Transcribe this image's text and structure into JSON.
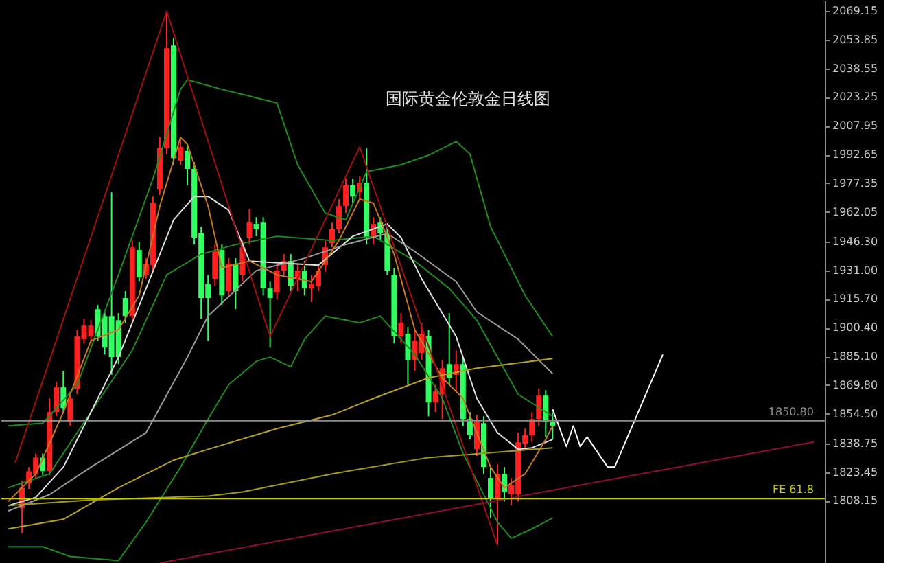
{
  "chart_data": {
    "type": "candlestick",
    "title": "国际黄金伦敦金日线图",
    "categories": [
      null,
      null,
      null,
      null,
      null,
      null,
      null,
      null,
      null,
      null,
      null,
      null,
      null,
      null,
      null,
      null,
      null,
      null,
      null,
      null,
      null,
      null,
      null,
      null,
      null,
      null,
      null,
      null,
      null,
      null,
      null,
      null,
      null,
      null,
      null,
      null,
      null,
      null,
      null,
      null,
      null,
      null,
      null,
      null,
      null,
      null,
      null,
      null,
      null,
      null,
      null,
      null,
      null,
      null,
      null,
      null,
      null,
      null,
      null,
      null,
      null,
      null,
      null,
      null,
      null,
      null,
      null,
      null,
      null,
      null,
      null,
      null,
      null,
      null,
      null,
      null,
      null,
      null,
      null,
      null,
      null,
      null,
      null,
      null,
      null,
      null,
      null,
      null,
      null,
      null,
      null,
      null,
      null,
      null,
      null,
      null,
      null,
      null,
      null,
      null,
      null,
      null,
      null,
      null,
      null,
      null,
      null,
      null,
      null,
      null,
      null,
      null,
      null,
      null,
      null,
      null,
      null,
      null
    ],
    "ohlc": [
      null,
      null,
      [
        1804.2,
        1818.8,
        1791.0,
        1815.1
      ],
      [
        1817.3,
        1826.1,
        1814.4,
        1823.9
      ],
      [
        1822.5,
        1833.4,
        1820.3,
        1831.2
      ],
      [
        1831.2,
        1833.4,
        1821.7,
        1823.9
      ],
      [
        1823.9,
        1862.7,
        1821.7,
        1855.4
      ],
      [
        1855.4,
        1871.5,
        1853.2,
        1868.6
      ],
      [
        1868.6,
        1877.4,
        1855.4,
        1857.6
      ],
      [
        1850.3,
        1866.4,
        1848.1,
        1862.7
      ],
      [
        1867.8,
        1899.3,
        1864.9,
        1895.7
      ],
      [
        1894.2,
        1905.2,
        1892.0,
        1901.5
      ],
      [
        1895.7,
        1904.4,
        1892.0,
        1901.5
      ],
      [
        1910.3,
        1912.5,
        1893.5,
        1895.7
      ],
      [
        1906.6,
        1908.8,
        1886.1,
        1889.8
      ],
      [
        1906.6,
        1972.5,
        1875.2,
        1884.7
      ],
      [
        1904.4,
        1908.1,
        1881.0,
        1884.7
      ],
      [
        1916.2,
        1919.8,
        1903.0,
        1906.6
      ],
      [
        1906.6,
        1946.9,
        1904.4,
        1943.2
      ],
      [
        1941.8,
        1946.2,
        1924.9,
        1927.1
      ],
      [
        1928.6,
        1937.4,
        1926.4,
        1934.5
      ],
      [
        1933.7,
        1970.3,
        1930.8,
        1966.7
      ],
      [
        1974.0,
        2001.8,
        1971.1,
        1996.0
      ],
      [
        1996.0,
        2069.1,
        1993.0,
        2049.4
      ],
      [
        2050.8,
        2054.5,
        1987.2,
        1990.8
      ],
      [
        1989.4,
        2001.8,
        1987.2,
        1996.7
      ],
      [
        1994.5,
        1998.1,
        1976.2,
        1985.0
      ],
      [
        1985.0,
        1988.6,
        1944.7,
        1948.4
      ],
      [
        1950.6,
        1954.2,
        1905.2,
        1916.2
      ],
      [
        1923.5,
        1928.6,
        1893.5,
        1916.2
      ],
      [
        1926.4,
        1944.7,
        1922.7,
        1941.0
      ],
      [
        1941.8,
        1944.7,
        1912.5,
        1917.6
      ],
      [
        1919.8,
        1937.4,
        1917.6,
        1934.5
      ],
      [
        1934.5,
        1937.4,
        1910.3,
        1919.8
      ],
      [
        1928.6,
        1946.9,
        1924.9,
        1943.2
      ],
      [
        1948.4,
        1963.7,
        1944.7,
        1956.4
      ],
      [
        1955.7,
        1959.3,
        1949.1,
        1952.8
      ],
      [
        1956.4,
        1959.3,
        1917.6,
        1921.3
      ],
      [
        1921.3,
        1924.9,
        1889.8,
        1916.2
      ],
      [
        1919.1,
        1934.5,
        1915.4,
        1930.8
      ],
      [
        1930.8,
        1939.6,
        1928.6,
        1935.9
      ],
      [
        1935.9,
        1939.6,
        1919.8,
        1922.7
      ],
      [
        1926.4,
        1934.5,
        1919.8,
        1930.8
      ],
      [
        1930.8,
        1935.9,
        1917.6,
        1921.3
      ],
      [
        1921.3,
        1928.6,
        1914.0,
        1923.5
      ],
      [
        1922.7,
        1933.7,
        1919.8,
        1930.8
      ],
      [
        1933.7,
        1946.9,
        1930.1,
        1943.2
      ],
      [
        1945.4,
        1956.4,
        1943.2,
        1952.8
      ],
      [
        1952.8,
        1968.9,
        1950.6,
        1965.2
      ],
      [
        1965.2,
        1979.8,
        1961.5,
        1976.2
      ],
      [
        1976.2,
        1979.8,
        1966.7,
        1970.3
      ],
      [
        1972.5,
        1981.3,
        1968.9,
        1977.6
      ],
      [
        1977.6,
        1995.9,
        1944.7,
        1948.4
      ],
      [
        1948.4,
        1959.3,
        1944.7,
        1955.7
      ],
      [
        1956.4,
        1959.3,
        1946.9,
        1950.6
      ],
      [
        1950.6,
        1954.2,
        1928.6,
        1930.8
      ],
      [
        1928.6,
        1932.3,
        1892.0,
        1895.7
      ],
      [
        1895.7,
        1908.1,
        1892.0,
        1903.0
      ],
      [
        1897.1,
        1900.8,
        1870.0,
        1883.2
      ],
      [
        1883.2,
        1899.3,
        1877.4,
        1893.5
      ],
      [
        1886.9,
        1903.0,
        1883.2,
        1897.1
      ],
      [
        1895.7,
        1899.3,
        1853.2,
        1860.5
      ],
      [
        1860.5,
        1870.0,
        1855.4,
        1866.4
      ],
      [
        1864.9,
        1883.2,
        1851.7,
        1878.8
      ],
      [
        1881.0,
        1908.1,
        1870.0,
        1873.7
      ],
      [
        1875.2,
        1888.3,
        1866.4,
        1881.0
      ],
      [
        1881.0,
        1884.7,
        1848.1,
        1851.7
      ],
      [
        1851.7,
        1855.4,
        1840.8,
        1843.0
      ],
      [
        1835.6,
        1853.9,
        1832.0,
        1850.3
      ],
      [
        1849.5,
        1853.2,
        1822.5,
        1826.1
      ],
      [
        1820.3,
        1826.1,
        1799.0,
        1809.3
      ],
      [
        1809.3,
        1827.6,
        1784.4,
        1822.5
      ],
      [
        1822.5,
        1826.1,
        1807.8,
        1812.9
      ],
      [
        1811.5,
        1820.3,
        1805.6,
        1816.6
      ],
      [
        1811.5,
        1844.4,
        1807.8,
        1839.3
      ],
      [
        1838.6,
        1846.6,
        1834.9,
        1843.0
      ],
      [
        1843.0,
        1855.4,
        1839.3,
        1851.7
      ],
      [
        1851.7,
        1867.8,
        1848.1,
        1864.2
      ],
      [
        1864.2,
        1867.1,
        1842.2,
        1850.3
      ],
      [
        1850.3,
        1855.4,
        1840.8,
        1848.1
      ],
      null,
      null,
      null,
      null,
      null,
      null,
      null,
      null,
      null,
      null,
      null,
      null,
      null,
      null,
      null,
      null,
      null,
      null,
      null,
      null,
      null,
      null,
      null,
      null,
      null,
      null,
      null,
      null,
      null,
      null,
      null,
      null,
      null,
      null,
      null,
      null,
      null,
      null
    ],
    "colors": [
      null,
      null,
      "#ff2020",
      "#ff2020",
      "#ff2020",
      "#30ff60",
      "#ff2020",
      "#ff2020",
      "#30ff60",
      "#ff2020",
      "#ff2020",
      "#ff2020",
      "#ff2020",
      "#30ff60",
      "#30ff60",
      "#30ff60",
      "#30ff60",
      "#30ff60",
      "#ff2020",
      "#30ff60",
      "#ff2020",
      "#ff2020",
      "#ff2020",
      "#ff2020",
      "#30ff60",
      "#ff2020",
      "#30ff60",
      "#30ff60",
      "#30ff60",
      "#30ff60",
      "#ff2020",
      "#30ff60",
      "#ff2020",
      "#30ff60",
      "#ff2020",
      "#ff2020",
      "#30ff60",
      "#30ff60",
      "#30ff60",
      "#ff2020",
      "#ff2020",
      "#30ff60",
      "#ff2020",
      "#30ff60",
      "#ff2020",
      "#ff2020",
      "#ff2020",
      "#ff2020",
      "#ff2020",
      "#ff2020",
      "#30ff60",
      "#ff2020",
      "#30ff60",
      "#ff2020",
      "#30ff60",
      "#30ff60",
      "#30ff60",
      "#ff2020",
      "#30ff60",
      "#ff2020",
      "#ff2020",
      "#30ff60",
      "#ff2020",
      "#ff2020",
      "#30ff60",
      "#ff2020",
      "#30ff60",
      "#30ff60",
      "#ff2020",
      "#30ff60",
      "#30ff60",
      "#ff2020",
      "#30ff60",
      "#ff2020",
      "#ff2020",
      "#ff2020",
      "#ff2020",
      "#ff2020",
      "#30ff60",
      "#30ff60",
      null,
      null,
      null,
      null,
      null,
      null,
      null,
      null,
      null,
      null,
      null,
      null,
      null,
      null,
      null,
      null,
      null,
      null,
      null,
      null,
      null,
      null,
      null,
      null,
      null,
      null,
      null,
      null,
      null,
      null,
      null,
      null,
      null,
      null,
      null,
      null,
      null,
      null
    ],
    "series": [
      {
        "type": "line",
        "color": "#1e8c1e",
        "values": [
          1848.1,
          null,
          null,
          null,
          null,
          1849.5,
          null,
          null,
          null,
          null,
          1870.0,
          null,
          null,
          null,
          null,
          null,
          1928.6,
          null,
          null,
          null,
          null,
          1979.8,
          null,
          null,
          null,
          2027.4,
          2032.5,
          null,
          null,
          null,
          null,
          2027.4,
          null,
          null,
          null,
          2023.8,
          null,
          null,
          null,
          2020.1,
          null,
          null,
          1987.2,
          null,
          null,
          null,
          1961.5,
          null,
          null,
          1957.9,
          null,
          null,
          1983.5,
          null,
          null,
          null,
          null,
          1987.2,
          null,
          null,
          null,
          1992.3,
          null,
          null,
          null,
          1999.6,
          null,
          1993.0,
          null,
          null,
          1954.2,
          null,
          1939.6,
          null,
          null,
          1917.6,
          null,
          null,
          null,
          1895.7,
          null,
          null,
          null,
          null,
          null,
          null,
          null,
          null,
          null,
          null,
          null,
          null,
          null,
          null,
          null,
          null,
          null,
          null,
          null,
          null,
          null,
          null,
          null,
          null,
          null,
          null,
          null,
          null,
          null,
          null,
          null,
          null,
          null,
          null,
          null,
          null,
          null,
          null
        ]
      },
      {
        "type": "line",
        "color": "#1e8c1e",
        "values": [
          1815.1,
          null,
          null,
          null,
          null,
          null,
          1822.5,
          null,
          null,
          null,
          null,
          null,
          1855.4,
          null,
          null,
          null,
          null,
          null,
          1888.3,
          null,
          null,
          null,
          null,
          1928.6,
          null,
          null,
          null,
          null,
          1939.6,
          null,
          null,
          null,
          null,
          1944.7,
          null,
          null,
          null,
          null,
          null,
          1949.1,
          null,
          null,
          null,
          null,
          null,
          null,
          null,
          1946.9,
          null,
          null,
          null,
          null,
          null,
          1949.1,
          null,
          null,
          null,
          null,
          null,
          1935.9,
          null,
          null,
          null,
          null,
          1921.3,
          null,
          null,
          null,
          1904.4,
          null,
          null,
          null,
          null,
          null,
          1864.9,
          null,
          null,
          null,
          null,
          1853.2,
          null,
          null,
          null,
          null,
          null,
          null,
          null,
          null,
          null,
          null,
          null,
          null,
          null,
          null,
          null,
          null,
          null,
          null,
          null,
          null,
          null,
          null,
          null,
          null,
          null,
          null,
          null,
          null,
          null,
          null,
          null,
          null,
          null,
          null,
          null,
          null,
          null,
          null
        ]
      },
      {
        "type": "line",
        "color": "#1e8c1e",
        "values": [
          1783.7,
          null,
          null,
          null,
          null,
          1783.7,
          null,
          null,
          null,
          1778.5,
          null,
          null,
          null,
          null,
          null,
          null,
          1776.3,
          null,
          null,
          null,
          1796.8,
          null,
          null,
          null,
          null,
          1826.1,
          null,
          null,
          null,
          1851.7,
          null,
          null,
          1870.0,
          null,
          null,
          null,
          1882.5,
          null,
          1884.7,
          null,
          null,
          1879.6,
          null,
          1894.2,
          null,
          null,
          1906.6,
          null,
          null,
          null,
          null,
          1903.0,
          null,
          null,
          1906.6,
          null,
          null,
          null,
          null,
          1886.1,
          null,
          null,
          null,
          1862.7,
          null,
          null,
          1833.4,
          null,
          null,
          null,
          null,
          1796.8,
          null,
          1788.1,
          null,
          null,
          1793.2,
          null,
          null,
          1799.0,
          null,
          null,
          null,
          null,
          null,
          null,
          null,
          null,
          null,
          null,
          null,
          null,
          null,
          null,
          null,
          null,
          null,
          null,
          null,
          null,
          null,
          null,
          null,
          null,
          null,
          null,
          null,
          null,
          null,
          null,
          null,
          null,
          null,
          null,
          null,
          null,
          null,
          null
        ]
      },
      {
        "type": "line",
        "color": "#e0e0e0",
        "values": [
          1805.6,
          null,
          null,
          null,
          1810.0,
          null,
          null,
          null,
          1826.1,
          null,
          null,
          null,
          1855.4,
          null,
          null,
          null,
          1884.7,
          null,
          null,
          null,
          1921.3,
          null,
          null,
          null,
          1957.9,
          null,
          null,
          1970.3,
          null,
          1970.3,
          null,
          null,
          1963.0,
          null,
          null,
          1935.9,
          null,
          null,
          null,
          null,
          null,
          null,
          null,
          null,
          null,
          1933.7,
          null,
          null,
          null,
          null,
          1949.1,
          null,
          null,
          null,
          null,
          1955.7,
          null,
          1948.4,
          null,
          null,
          1926.4,
          null,
          null,
          null,
          null,
          1895.7,
          null,
          null,
          1862.7,
          null,
          null,
          1844.4,
          null,
          null,
          1835.6,
          null,
          1836.4,
          null,
          null,
          1840.8,
          null,
          null,
          null,
          null,
          null,
          null,
          null,
          null,
          null,
          null,
          null,
          null,
          null,
          null,
          null,
          null,
          null,
          null,
          null,
          null,
          null,
          null,
          null,
          null,
          null,
          null,
          null,
          null,
          null,
          null,
          null,
          null,
          null,
          null,
          null,
          null,
          null,
          null
        ]
      },
      {
        "type": "line",
        "color": "#9a9a9a",
        "values": [
          1802.7,
          null,
          null,
          null,
          null,
          null,
          1811.5,
          null,
          null,
          null,
          null,
          null,
          1826.1,
          null,
          null,
          null,
          null,
          null,
          null,
          null,
          1844.4,
          null,
          null,
          null,
          null,
          null,
          1884.7,
          null,
          null,
          1906.6,
          null,
          null,
          null,
          null,
          null,
          null,
          1930.8,
          null,
          null,
          null,
          null,
          null,
          null,
          1937.4,
          null,
          null,
          null,
          null,
          null,
          1944.7,
          null,
          null,
          null,
          null,
          null,
          1950.6,
          null,
          null,
          null,
          1941.0,
          null,
          null,
          null,
          null,
          null,
          1924.9,
          null,
          null,
          1908.8,
          null,
          null,
          null,
          null,
          null,
          1894.2,
          null,
          null,
          null,
          null,
          1875.9,
          null,
          null,
          null,
          null,
          null,
          null,
          null,
          null,
          null,
          null,
          null,
          null,
          null,
          null,
          null,
          null,
          null,
          null,
          null,
          null,
          null,
          null,
          null,
          null,
          null,
          null,
          null,
          null,
          null,
          null,
          null,
          null,
          null,
          null,
          null,
          null,
          null,
          null
        ]
      },
      {
        "type": "line",
        "color": "#c8781e",
        "values": [
          1807.8,
          null,
          null,
          null,
          1822.5,
          null,
          null,
          null,
          1855.4,
          null,
          null,
          null,
          1893.5,
          null,
          null,
          null,
          1899.3,
          null,
          null,
          1917.6,
          null,
          null,
          1965.2,
          null,
          null,
          2001.8,
          1998.1,
          null,
          null,
          1965.2,
          null,
          1932.3,
          null,
          null,
          null,
          1935.9,
          null,
          null,
          null,
          1928.6,
          null,
          null,
          null,
          null,
          1924.9,
          null,
          null,
          null,
          1946.9,
          null,
          null,
          1968.9,
          null,
          1966.7,
          null,
          null,
          1939.6,
          null,
          null,
          1899.3,
          null,
          null,
          null,
          1873.7,
          null,
          null,
          1862.7,
          null,
          null,
          null,
          1826.1,
          null,
          1815.1,
          null,
          null,
          1822.5,
          null,
          null,
          1840.8,
          1848.1,
          null,
          null,
          null,
          null,
          null,
          null,
          null,
          null,
          null,
          null,
          null,
          null,
          null,
          null,
          null,
          null,
          null,
          null,
          null,
          null,
          null,
          null,
          null,
          null,
          null,
          null,
          null,
          null,
          null,
          null,
          null,
          null,
          null,
          null,
          null,
          null,
          null,
          null
        ]
      },
      {
        "type": "line",
        "color": "#b8a020",
        "values": [
          1793.2,
          null,
          null,
          null,
          null,
          null,
          null,
          null,
          1798.3,
          null,
          null,
          null,
          null,
          null,
          null,
          null,
          1815.1,
          null,
          null,
          null,
          null,
          null,
          null,
          null,
          1829.8,
          null,
          null,
          null,
          null,
          1835.6,
          null,
          null,
          null,
          null,
          null,
          null,
          null,
          null,
          null,
          1846.6,
          null,
          null,
          null,
          null,
          null,
          null,
          null,
          1853.9,
          null,
          null,
          null,
          null,
          null,
          1862.7,
          null,
          null,
          null,
          null,
          null,
          null,
          null,
          1873.7,
          null,
          null,
          null,
          null,
          null,
          null,
          1878.8,
          null,
          null,
          null,
          null,
          null,
          null,
          null,
          null,
          null,
          null,
          1883.9,
          null,
          null,
          null,
          null,
          null,
          null,
          null,
          null,
          null,
          null,
          null,
          null,
          null,
          null,
          null,
          null,
          null,
          null,
          null,
          null,
          null,
          null,
          null,
          null,
          null,
          null,
          null,
          null,
          null,
          null,
          null,
          null,
          null,
          null,
          null,
          null,
          null,
          null
        ]
      },
      {
        "type": "line",
        "color": "#a09a20",
        "values": [
          1805.6,
          null,
          null,
          null,
          null,
          null,
          null,
          null,
          null,
          null,
          null,
          null,
          1808.6,
          null,
          null,
          null,
          null,
          null,
          null,
          null,
          null,
          null,
          null,
          null,
          null,
          null,
          null,
          null,
          null,
          1810.7,
          null,
          null,
          null,
          null,
          1812.9,
          null,
          null,
          null,
          null,
          null,
          null,
          null,
          null,
          null,
          null,
          null,
          null,
          1822.5,
          null,
          null,
          null,
          null,
          null,
          null,
          null,
          null,
          null,
          null,
          null,
          null,
          null,
          1831.2,
          null,
          null,
          null,
          null,
          null,
          null,
          null,
          null,
          null,
          null,
          null,
          null,
          null,
          null,
          null,
          null,
          null,
          1836.4,
          null,
          null,
          null,
          null,
          null,
          null,
          null,
          null,
          null,
          null,
          null,
          null,
          null,
          null,
          null,
          null,
          null,
          null,
          null,
          null,
          null,
          null,
          null,
          null,
          null,
          null,
          null,
          null,
          null,
          null,
          null,
          null,
          null,
          null,
          null,
          null,
          null,
          null
        ]
      },
      {
        "type": "line",
        "color": "#a01010",
        "values": [
          null,
          1828.3,
          null,
          null,
          null,
          null,
          null,
          null,
          null,
          null,
          null,
          null,
          null,
          null,
          null,
          null,
          null,
          null,
          null,
          null,
          null,
          null,
          null,
          2069.1,
          null,
          null,
          null,
          null,
          null,
          null,
          null,
          null,
          null,
          null,
          null,
          null,
          null,
          null,
          1895.7,
          null,
          null,
          null,
          null,
          null,
          null,
          null,
          null,
          null,
          null,
          null,
          null,
          1996.7,
          null,
          null,
          null,
          null,
          null,
          null,
          null,
          null,
          null,
          null,
          null,
          null,
          null,
          null,
          null,
          null,
          null,
          null,
          null,
          1784.4,
          null,
          null,
          null,
          null,
          null,
          null,
          null,
          null,
          null,
          null,
          null,
          null,
          null,
          null,
          null,
          null,
          null,
          null,
          null,
          null,
          null,
          null,
          null,
          null,
          null,
          null,
          null,
          null,
          null,
          null,
          null,
          null,
          null,
          null,
          null,
          null,
          null,
          null,
          null,
          null,
          null,
          null,
          null,
          null,
          null,
          null
        ]
      },
      {
        "type": "line",
        "color": "#8c1030",
        "values": [
          null,
          null,
          null,
          null,
          null,
          null,
          null,
          null,
          null,
          null,
          null,
          null,
          null,
          null,
          null,
          null,
          null,
          null,
          null,
          null,
          null,
          null,
          1775.0,
          null,
          null,
          null,
          null,
          null,
          null,
          null,
          null,
          null,
          null,
          null,
          null,
          null,
          null,
          null,
          null,
          null,
          null,
          null,
          null,
          null,
          null,
          null,
          null,
          null,
          null,
          null,
          null,
          null,
          null,
          null,
          null,
          null,
          null,
          null,
          null,
          null,
          null,
          null,
          null,
          null,
          null,
          null,
          null,
          null,
          null,
          null,
          null,
          null,
          null,
          null,
          null,
          null,
          null,
          null,
          null,
          null,
          null,
          null,
          null,
          null,
          null,
          null,
          null,
          null,
          null,
          null,
          null,
          null,
          null,
          null,
          null,
          null,
          null,
          null,
          null,
          null,
          null,
          null,
          null,
          null,
          null,
          null,
          null,
          null,
          null,
          null,
          null,
          null,
          null,
          null,
          null,
          null,
          null,
          1839.6
        ]
      },
      {
        "type": "line",
        "color": "#ffffff",
        "values": [
          null,
          null,
          null,
          null,
          null,
          null,
          null,
          null,
          null,
          null,
          null,
          null,
          null,
          null,
          null,
          null,
          null,
          null,
          null,
          null,
          null,
          null,
          null,
          null,
          null,
          null,
          null,
          null,
          null,
          null,
          null,
          null,
          null,
          null,
          null,
          null,
          null,
          null,
          null,
          null,
          null,
          null,
          null,
          null,
          null,
          null,
          null,
          null,
          null,
          null,
          null,
          null,
          null,
          null,
          null,
          null,
          null,
          null,
          null,
          null,
          null,
          null,
          null,
          null,
          null,
          null,
          null,
          null,
          null,
          null,
          null,
          null,
          null,
          null,
          null,
          null,
          null,
          null,
          null,
          1856.9,
          null,
          1837.1,
          1848.1,
          1837.1,
          1842.2,
          null,
          null,
          1826.1,
          1826.1,
          null,
          null,
          null,
          null,
          null,
          null,
          1886.1,
          null,
          null,
          null,
          null,
          null,
          null,
          null,
          null,
          null,
          null,
          null,
          null,
          null,
          null,
          null,
          null,
          null,
          null,
          null,
          null,
          null,
          null
        ]
      }
    ],
    "ref_lines": [
      {
        "axis": "y",
        "value": 1850.8,
        "label": "1850.80",
        "color": "#909090"
      },
      {
        "axis": "y",
        "value": 1809.3,
        "label": "FE 61.8",
        "color": "#c8c800"
      }
    ],
    "ylim": [
      1775,
      2075
    ],
    "yticks": [
      {
        "value": 2069.15,
        "label": "2069.15"
      },
      {
        "value": 2053.85,
        "label": "2053.85"
      },
      {
        "value": 2038.55,
        "label": "2038.55"
      },
      {
        "value": 2023.25,
        "label": "2023.25"
      },
      {
        "value": 2007.95,
        "label": "2007.95"
      },
      {
        "value": 1992.65,
        "label": "1992.65"
      },
      {
        "value": 1977.35,
        "label": "1977.35"
      },
      {
        "value": 1962.05,
        "label": "1962.05"
      },
      {
        "value": 1946.3,
        "label": "1946.30"
      },
      {
        "value": 1931.0,
        "label": "1931.00"
      },
      {
        "value": 1915.7,
        "label": "1915.70"
      },
      {
        "value": 1900.4,
        "label": "1900.40"
      },
      {
        "value": 1885.1,
        "label": "1885.10"
      },
      {
        "value": 1869.8,
        "label": "1869.80"
      },
      {
        "value": 1854.5,
        "label": "1854.50"
      },
      {
        "value": 1838.75,
        "label": "1838.75"
      },
      {
        "value": 1823.45,
        "label": "1823.45"
      },
      {
        "value": 1808.15,
        "label": "1808.15"
      }
    ]
  }
}
